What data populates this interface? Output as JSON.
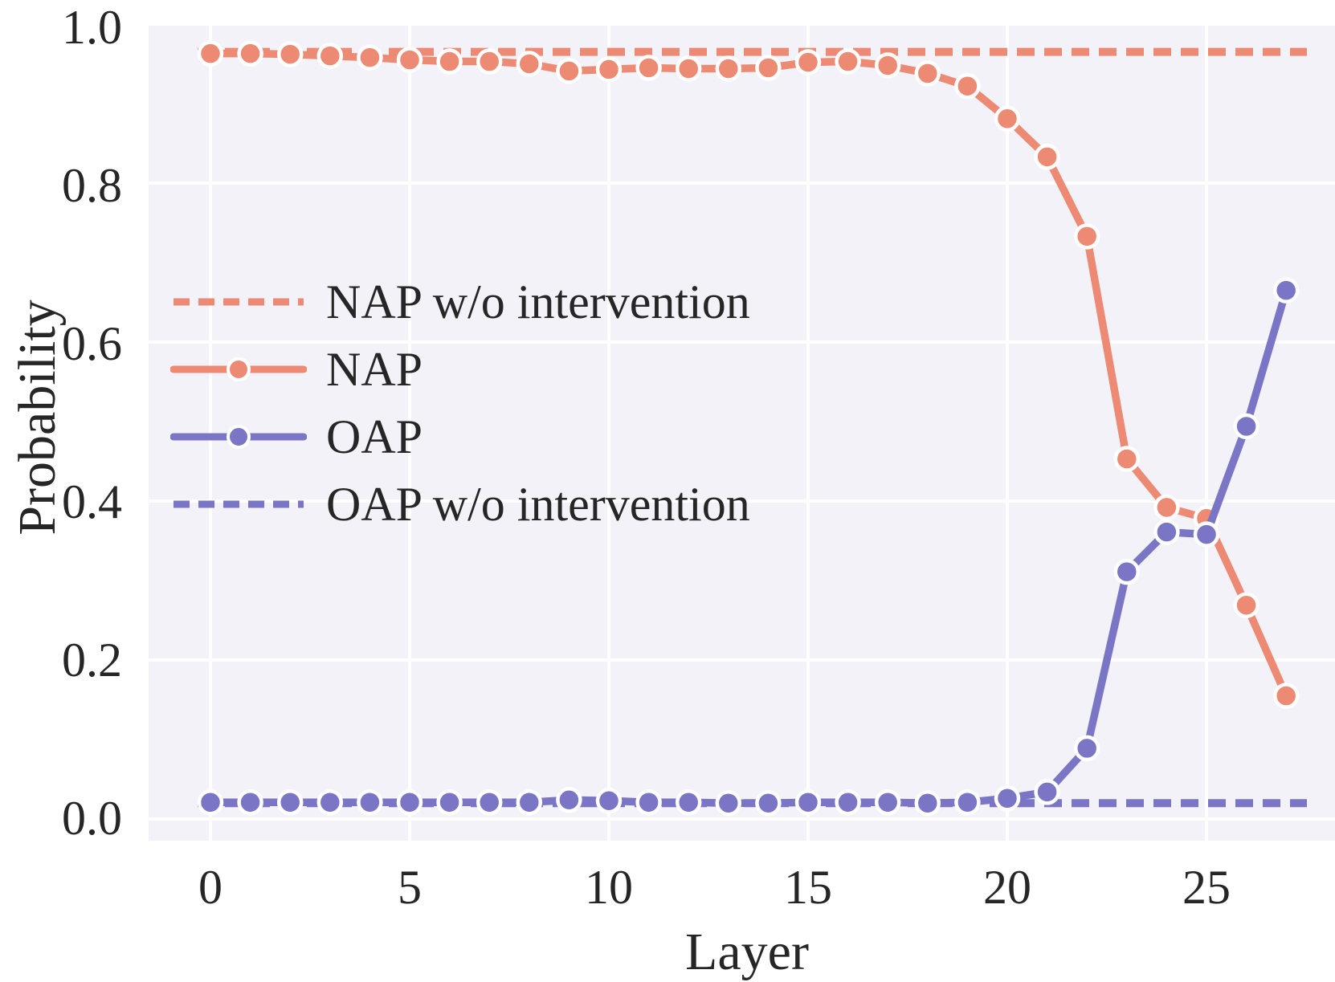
{
  "figure": {
    "xlabel": "Layer",
    "ylabel": "Probability",
    "xtick_labels": [
      "0",
      "5",
      "10",
      "15",
      "20",
      "25"
    ],
    "ytick_labels": [
      "0.0",
      "0.2",
      "0.4",
      "0.6",
      "0.8",
      "1.0"
    ]
  },
  "colors": {
    "nap": "#ED8A74",
    "oap": "#7B75C5",
    "plot_background": "#F3F2F9",
    "gridline": "#FFFFFF",
    "text": "#262626"
  },
  "legend": {
    "items": [
      {
        "label": "NAP w/o intervention",
        "style": "dashed",
        "color": "#ED8A74"
      },
      {
        "label": "NAP",
        "style": "solid-marker",
        "color": "#ED8A74"
      },
      {
        "label": "OAP",
        "style": "solid-marker",
        "color": "#7B75C5"
      },
      {
        "label": "OAP w/o intervention",
        "style": "dashed",
        "color": "#7B75C5"
      }
    ]
  },
  "chart_data": {
    "type": "line",
    "title": "",
    "xlabel": "Layer",
    "ylabel": "Probability",
    "x": [
      0,
      1,
      2,
      3,
      4,
      5,
      6,
      7,
      8,
      9,
      10,
      11,
      12,
      13,
      14,
      15,
      16,
      17,
      18,
      19,
      20,
      21,
      22,
      23,
      24,
      25,
      26,
      27
    ],
    "series": [
      {
        "name": "NAP w/o intervention",
        "style": "dashed",
        "color": "#ED8A74",
        "constant": 0.965
      },
      {
        "name": "NAP",
        "style": "solid",
        "marker": "circle",
        "color": "#ED8A74",
        "values": [
          0.963,
          0.963,
          0.962,
          0.96,
          0.958,
          0.955,
          0.953,
          0.953,
          0.95,
          0.941,
          0.943,
          0.945,
          0.944,
          0.944,
          0.945,
          0.952,
          0.953,
          0.948,
          0.938,
          0.922,
          0.881,
          0.833,
          0.733,
          0.453,
          0.392,
          0.378,
          0.269,
          0.155
        ]
      },
      {
        "name": "OAP",
        "style": "solid",
        "marker": "circle",
        "color": "#7B75C5",
        "values": [
          0.021,
          0.021,
          0.021,
          0.021,
          0.021,
          0.021,
          0.021,
          0.021,
          0.021,
          0.024,
          0.023,
          0.021,
          0.021,
          0.02,
          0.02,
          0.021,
          0.021,
          0.021,
          0.02,
          0.021,
          0.026,
          0.034,
          0.089,
          0.311,
          0.361,
          0.358,
          0.494,
          0.665
        ]
      },
      {
        "name": "OAP w/o intervention",
        "style": "dashed",
        "color": "#7B75C5",
        "constant": 0.02
      }
    ],
    "xticks": [
      0,
      5,
      10,
      15,
      20,
      25
    ],
    "yticks": [
      0.0,
      0.2,
      0.4,
      0.6,
      0.8,
      1.0
    ],
    "xlim": [
      -1.55,
      28.2
    ],
    "ylim": [
      -0.027,
      1.006
    ],
    "grid": true,
    "legend_position": "center-left",
    "legend_frame": false
  }
}
